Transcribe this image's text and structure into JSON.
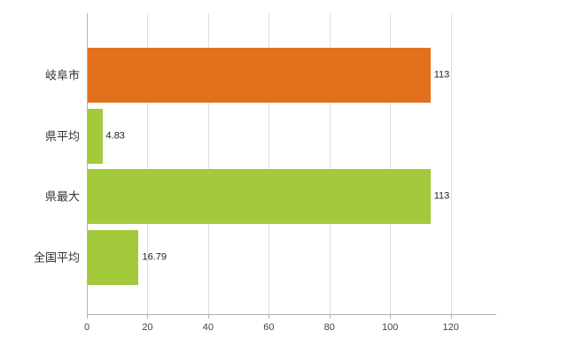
{
  "chart_data": {
    "type": "bar",
    "orientation": "horizontal",
    "title": "",
    "xlabel": "",
    "ylabel": "",
    "categories": [
      "岐阜市",
      "県平均",
      "県最大",
      "全国平均"
    ],
    "values": [
      113,
      4.83,
      113,
      16.79
    ],
    "value_labels": [
      "113",
      "4.83",
      "113",
      "16.79"
    ],
    "bar_colors": [
      "#e2711d",
      "#a3c93c",
      "#a3c93c",
      "#a3c93c"
    ],
    "x_ticks": [
      0,
      20,
      40,
      60,
      80,
      100,
      120
    ],
    "x_tick_labels": [
      "0",
      "20",
      "40",
      "60",
      "80",
      "100",
      "120"
    ],
    "xlim": [
      0,
      135
    ],
    "grid": true,
    "legend": "none",
    "colors": {
      "grid": "#dedede",
      "axis": "#b3b3b3",
      "accent_orange": "#e2711d",
      "accent_green": "#a3c93c"
    }
  }
}
